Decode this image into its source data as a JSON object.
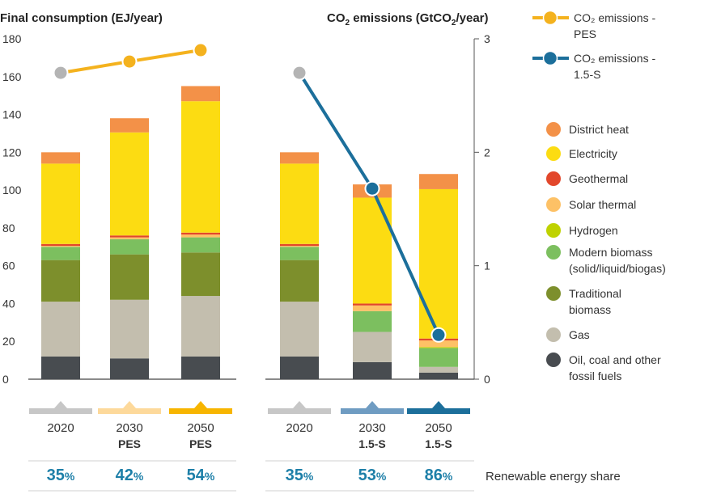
{
  "chart_data": {
    "type": "bar",
    "stacked": true,
    "titles": {
      "left": "Final consumption (EJ/year)",
      "right_main": "CO",
      "right_sub": "2",
      "right_mid": " emissions (GtCO",
      "right_sub2": "2",
      "right_end": "/year)"
    },
    "y_left": {
      "min": 0,
      "max": 180,
      "ticks": [
        "0",
        "20",
        "40",
        "60",
        "80",
        "100",
        "120",
        "140",
        "160",
        "180"
      ]
    },
    "y_right": {
      "min": 0,
      "max": 3,
      "ticks": [
        "0",
        "1",
        "2",
        "3"
      ]
    },
    "panels": [
      {
        "bars": [
          {
            "year": "2020",
            "scenario": "",
            "marker_color": "#c7c7c7",
            "share": "35",
            "values": [
              12,
              29,
              22,
              7,
              0,
              0.5,
              1,
              42.5,
              6
            ]
          },
          {
            "year": "2030",
            "scenario": "PES",
            "marker_color": "#fdd99b",
            "share": "42",
            "values": [
              11,
              31,
              24,
              8,
              0,
              1,
              1,
              54.5,
              7.5
            ]
          },
          {
            "year": "2050",
            "scenario": "PES",
            "marker_color": "#f7b500",
            "share": "54",
            "values": [
              12,
              32,
              23,
              8,
              0,
              1.5,
              1,
              69.5,
              8
            ]
          }
        ]
      },
      {
        "bars": [
          {
            "year": "2020",
            "scenario": "",
            "marker_color": "#c7c7c7",
            "share": "35",
            "values": [
              12,
              29,
              22,
              7,
              0,
              0.5,
              1,
              42.5,
              6
            ]
          },
          {
            "year": "2030",
            "scenario": "1.5-S",
            "marker_color": "#6f9cc2",
            "share": "53",
            "values": [
              9,
              16,
              0,
              11,
              0,
              3,
              1,
              56,
              7
            ]
          },
          {
            "year": "2050",
            "scenario": "1.5-S",
            "marker_color": "#1c6f9b",
            "share": "86",
            "values": [
              3.5,
              3,
              0,
              10,
              0.5,
              3.5,
              1,
              79,
              8
            ]
          }
        ]
      }
    ],
    "series": [
      {
        "name": "Oil, coal and other fossil fuels",
        "color": "#484c50"
      },
      {
        "name": "Gas",
        "color": "#c3beae"
      },
      {
        "name": "Traditional biomass",
        "color": "#7d8f2c"
      },
      {
        "name": "Modern biomass (solid/liquid/biogas)",
        "color": "#7cbf5f"
      },
      {
        "name": "Hydrogen",
        "color": "#bfd200"
      },
      {
        "name": "Solar thermal",
        "color": "#fdc166"
      },
      {
        "name": "Geothermal",
        "color": "#e2472b"
      },
      {
        "name": "Electricity",
        "color": "#fcdc12"
      },
      {
        "name": "District heat",
        "color": "#f39148"
      }
    ],
    "co2_series": [
      {
        "name": "PES",
        "color": "#f4b21e",
        "panel": 0,
        "values": [
          2.7,
          2.8,
          2.9
        ]
      },
      {
        "name": "1.5-S",
        "color": "#1c6f9b",
        "panel": 1,
        "values": [
          2.7,
          1.68,
          0.39
        ]
      }
    ],
    "start_color": "#b4b4b4",
    "legend_co2": [
      {
        "line1": "CO₂ emissions -",
        "line2": "PES",
        "color": "#f4b21e"
      },
      {
        "line1": "CO₂ emissions -",
        "line2": "1.5-S",
        "color": "#1c6f9b"
      }
    ],
    "legend": [
      {
        "line1": "District heat",
        "line2": "",
        "color": "#f39148"
      },
      {
        "line1": "Electricity",
        "line2": "",
        "color": "#fcdc12"
      },
      {
        "line1": "Geothermal",
        "line2": "",
        "color": "#e2472b"
      },
      {
        "line1": "Solar thermal",
        "line2": "",
        "color": "#fdc166"
      },
      {
        "line1": "Hydrogen",
        "line2": "",
        "color": "#bfd200"
      },
      {
        "line1": "Modern biomass",
        "line2": "(solid/liquid/biogas)",
        "color": "#7cbf5f"
      },
      {
        "line1": "Traditional",
        "line2": "biomass",
        "color": "#7d8f2c"
      },
      {
        "line1": "Gas",
        "line2": "",
        "color": "#c3beae"
      },
      {
        "line1": "Oil, coal and other",
        "line2": "fossil fuels",
        "color": "#484c50"
      }
    ],
    "share_label": "Renewable energy share",
    "percent_sign": "%"
  }
}
